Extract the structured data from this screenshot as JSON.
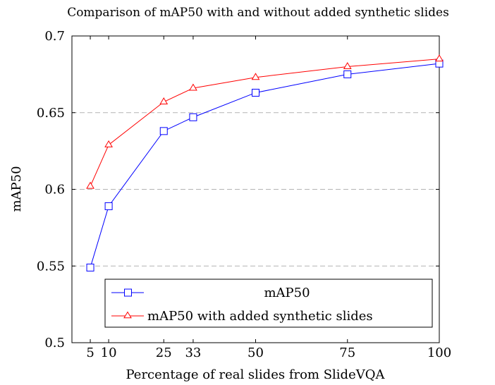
{
  "chart_data": {
    "type": "line",
    "title": "Comparison of mAP50 with and without added synthetic slides",
    "xlabel": "Percentage of real slides from SlideVQA",
    "ylabel": "mAP50",
    "x": [
      5,
      10,
      25,
      33,
      50,
      75,
      100
    ],
    "xlim": [
      0,
      100
    ],
    "ylim": [
      0.5,
      0.7
    ],
    "xticks": [
      "5",
      "10",
      "25",
      "33",
      "50",
      "75",
      "100"
    ],
    "yticks": [
      "0.5",
      "0.55",
      "0.6",
      "0.65",
      "0.7"
    ],
    "ytick_values": [
      0.5,
      0.55,
      0.6,
      0.65,
      0.7
    ],
    "grid": "y-dashed",
    "legend_position": "bottom-right",
    "series": [
      {
        "name": "mAP50",
        "values": [
          0.549,
          0.589,
          0.638,
          0.647,
          0.663,
          0.675,
          0.682
        ],
        "color": "#0000ff",
        "marker": "square"
      },
      {
        "name": "mAP50 with added synthetic slides",
        "values": [
          0.602,
          0.629,
          0.657,
          0.666,
          0.673,
          0.68,
          0.685
        ],
        "color": "#ff0000",
        "marker": "triangle"
      }
    ]
  }
}
